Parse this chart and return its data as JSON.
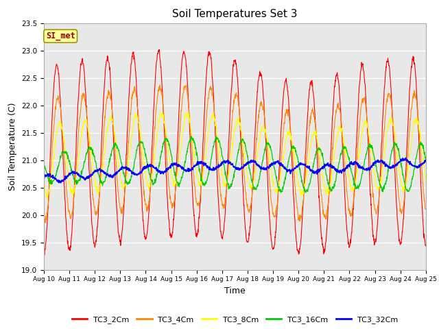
{
  "title": "Soil Temperatures Set 3",
  "xlabel": "Time",
  "ylabel": "Soil Temperature (C)",
  "ylim": [
    19.0,
    23.5
  ],
  "x_tick_labels": [
    "Aug 10",
    "Aug 11",
    "Aug 12",
    "Aug 13",
    "Aug 14",
    "Aug 15",
    "Aug 16",
    "Aug 17",
    "Aug 18",
    "Aug 19",
    "Aug 20",
    "Aug 21",
    "Aug 22",
    "Aug 23",
    "Aug 24",
    "Aug 25"
  ],
  "annotation_text": "SI_met",
  "series_colors": {
    "TC3_2Cm": "#ff0000",
    "TC3_4Cm": "#ff8800",
    "TC3_8Cm": "#ffff00",
    "TC3_16Cm": "#00cc00",
    "TC3_32Cm": "#0000ff"
  },
  "plot_bg": "#e8e8e8",
  "fig_bg": "#ffffff",
  "grid_color": "#ffffff",
  "title_fontsize": 11,
  "axis_fontsize": 9,
  "legend_fontsize": 8,
  "yticks": [
    19.0,
    19.5,
    20.0,
    20.5,
    21.0,
    21.5,
    22.0,
    22.5,
    23.0,
    23.5
  ]
}
